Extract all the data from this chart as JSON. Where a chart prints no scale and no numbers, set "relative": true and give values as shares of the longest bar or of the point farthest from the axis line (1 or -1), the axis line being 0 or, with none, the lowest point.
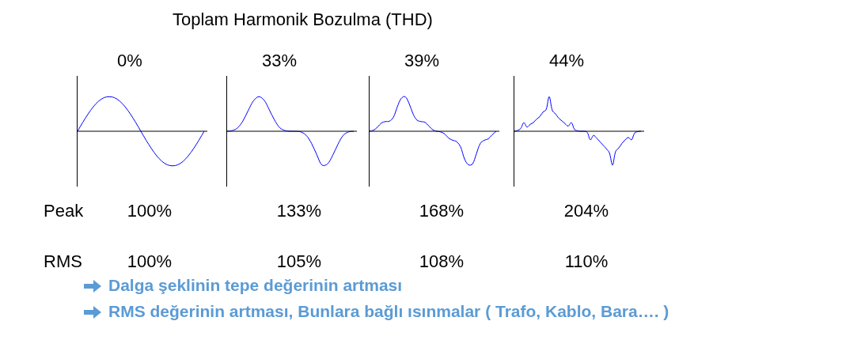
{
  "chart_data": [
    {
      "type": "other",
      "title": "Toplam Harmonik Bozulma (THD)",
      "annotations": [
        "Peak",
        "RMS",
        "Dalga şeklinin tepe değerinin artması",
        "RMS değerinin artması, Bunlara bağlı ısınmalar ( Trafo, Kablo, Bara…. )"
      ]
    },
    {
      "type": "line",
      "title": "0%",
      "relative": true,
      "color": "#0000ff",
      "categories": [
        null,
        null,
        null,
        null,
        null,
        null,
        null,
        null,
        null,
        null,
        null,
        null,
        null,
        null,
        null,
        null,
        null,
        null,
        null,
        null,
        null,
        null,
        null,
        null,
        null
      ],
      "values": [
        0,
        0.26,
        0.5,
        0.71,
        0.87,
        0.97,
        1,
        0.97,
        0.87,
        0.71,
        0.5,
        0.26,
        0,
        -0.26,
        -0.5,
        -0.71,
        -0.87,
        -0.97,
        -1,
        -0.97,
        -0.87,
        -0.71,
        -0.5,
        -0.26,
        0
      ],
      "annotations": [
        "100%",
        "100%"
      ]
    },
    {
      "type": "line",
      "title": "33%",
      "relative": true,
      "color": "#0000ff",
      "categories": [
        null,
        null,
        null,
        null,
        null,
        null,
        null,
        null,
        null,
        null,
        null,
        null,
        null,
        null,
        null,
        null,
        null,
        null,
        null,
        null,
        null,
        null,
        null,
        null,
        null
      ],
      "values": [
        0,
        0.02,
        0.1,
        0.3,
        0.6,
        0.88,
        1,
        0.9,
        0.62,
        0.32,
        0.1,
        0.02,
        0,
        0,
        -0.02,
        -0.12,
        -0.35,
        -0.68,
        -0.98,
        -0.95,
        -0.7,
        -0.38,
        -0.12,
        -0.02,
        0
      ],
      "annotations": [
        "133%",
        "105%"
      ]
    },
    {
      "type": "line",
      "title": "39%",
      "relative": true,
      "color": "#0000ff",
      "categories": [
        null,
        null,
        null,
        null,
        null,
        null,
        null,
        null,
        null,
        null,
        null,
        null,
        null,
        null,
        null,
        null,
        null,
        null,
        null,
        null,
        null,
        null,
        null,
        null,
        null,
        null,
        null,
        null,
        null,
        null,
        null,
        null,
        null
      ],
      "values": [
        0,
        0.03,
        0.12,
        0.24,
        0.28,
        0.29,
        0.4,
        0.7,
        0.95,
        1,
        0.8,
        0.5,
        0.32,
        0.28,
        0.26,
        0.15,
        0.04,
        0,
        -0.02,
        -0.08,
        -0.2,
        -0.26,
        -0.3,
        -0.45,
        -0.8,
        -0.97,
        -0.95,
        -0.65,
        -0.35,
        -0.26,
        -0.22,
        -0.1,
        0
      ],
      "annotations": [
        "168%",
        "108%"
      ]
    },
    {
      "type": "line",
      "title": "44%",
      "relative": true,
      "color": "#0000ff",
      "categories": [
        null,
        null,
        null,
        null,
        null,
        null,
        null,
        null,
        null,
        null,
        null,
        null,
        null,
        null,
        null,
        null,
        null,
        null,
        null,
        null,
        null,
        null,
        null,
        null,
        null,
        null,
        null,
        null,
        null,
        null,
        null,
        null,
        null,
        null,
        null,
        null,
        null,
        null,
        null,
        null,
        null
      ],
      "values": [
        0,
        0.02,
        0.08,
        0.25,
        0.12,
        0.2,
        0.25,
        0.35,
        0.42,
        0.55,
        0.62,
        1,
        0.6,
        0.5,
        0.38,
        0.3,
        0.22,
        0.15,
        0.25,
        0.05,
        0.01,
        0,
        0,
        -0.03,
        -0.25,
        -0.12,
        -0.2,
        -0.3,
        -0.4,
        -0.5,
        -0.62,
        -0.98,
        -0.58,
        -0.48,
        -0.35,
        -0.25,
        -0.18,
        -0.25,
        -0.05,
        -0.01,
        0
      ],
      "annotations": [
        "204%",
        "110%"
      ]
    }
  ]
}
